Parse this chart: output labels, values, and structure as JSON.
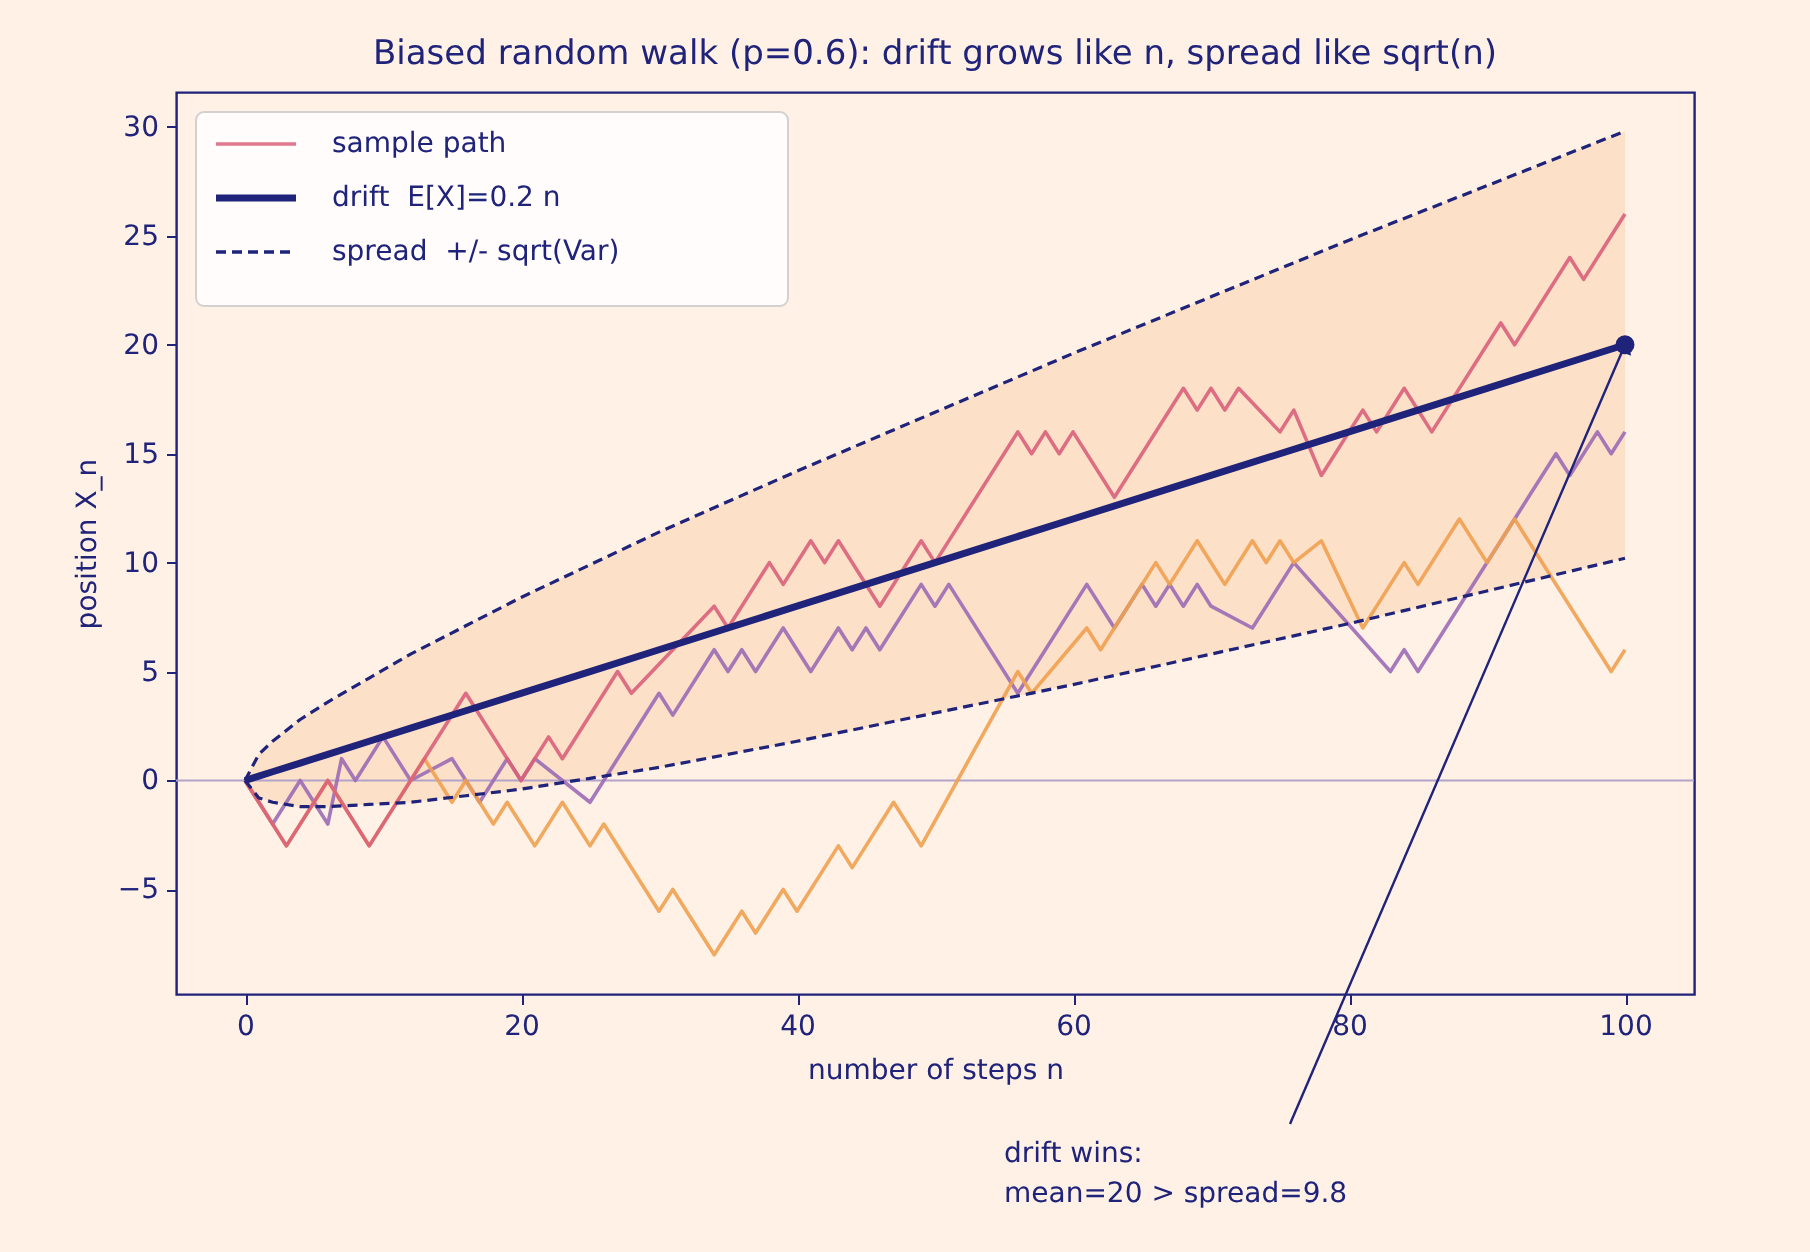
{
  "chart_data": {
    "type": "line",
    "title": "Biased random walk (p=0.6): drift grows like n, spread like sqrt(n)",
    "xlabel": "number of steps  n",
    "ylabel": "position  X_n",
    "xlim": [
      -5,
      105
    ],
    "xticks": [
      0,
      20,
      40,
      60,
      80,
      100
    ],
    "ylim": [
      -9.8,
      31.6
    ],
    "yticks": [
      -5,
      0,
      5,
      10,
      15,
      20,
      25,
      30
    ],
    "grid": false,
    "legend": "top left",
    "ref_lines": [
      {
        "axis": "y",
        "value": 0,
        "color": "#b3a3c9"
      }
    ],
    "annotations": [
      {
        "text": "drift wins:\nmean=20 > spread=9.8",
        "x": 100,
        "y": 20
      }
    ],
    "series": [
      {
        "name": "sample path",
        "color": "#d9607a",
        "x": [
          0,
          3,
          6,
          9,
          13,
          16,
          20,
          22,
          23,
          27,
          28,
          34,
          35,
          38,
          39,
          41,
          42,
          43,
          46,
          49,
          50,
          56,
          57,
          58,
          59,
          60,
          63,
          68,
          69,
          70,
          71,
          72,
          75,
          76,
          78,
          81,
          82,
          84,
          86,
          91,
          92,
          96,
          97,
          100
        ],
        "values": [
          0,
          -3,
          0,
          -3,
          1,
          4,
          0,
          2,
          1,
          5,
          4,
          8,
          7,
          10,
          9,
          11,
          10,
          11,
          8,
          11,
          10,
          16,
          15,
          16,
          15,
          16,
          13,
          18,
          17,
          18,
          17,
          18,
          16,
          17,
          14,
          17,
          16,
          18,
          16,
          21,
          20,
          24,
          23,
          26
        ]
      },
      {
        "name": "drift  E[X]=0.2 n",
        "color": "#1f237a",
        "x": [
          0,
          1,
          2,
          4,
          6,
          9,
          12,
          16,
          20,
          25,
          30,
          40,
          50,
          60,
          70,
          80,
          90,
          100
        ],
        "values": [
          0,
          0.2,
          0.4,
          0.8,
          1.2,
          1.8,
          2.4,
          3.2,
          4,
          5,
          6,
          8,
          10,
          12,
          14,
          16,
          18,
          20
        ],
        "lower": [
          0,
          -0.8,
          -1,
          -1.2,
          -1.2,
          -1.1,
          -1,
          -0.7,
          -0.4,
          0.1,
          0.6,
          1.8,
          3.1,
          4.4,
          5.8,
          7.2,
          8.7,
          10.2
        ],
        "upper": [
          0,
          1.2,
          1.8,
          2.8,
          3.6,
          4.7,
          5.8,
          7.1,
          8.4,
          9.9,
          11.4,
          14.2,
          16.9,
          19.6,
          22.2,
          24.8,
          27.3,
          29.8
        ]
      },
      {
        "name": "spread  +/- sqrt(Var)",
        "line_style": "dashed",
        "color": "#1f237a",
        "x": [
          0,
          1,
          2,
          4,
          6,
          9,
          12,
          16,
          20,
          25,
          30,
          40,
          50,
          60,
          70,
          80,
          90,
          100
        ],
        "values": [
          0,
          1.2,
          1.8,
          2.8,
          3.6,
          4.7,
          5.8,
          7.1,
          8.4,
          9.9,
          11.4,
          14.2,
          16.9,
          19.6,
          22.2,
          24.8,
          27.3,
          29.8
        ]
      },
      {
        "color": "#9b6bb5",
        "x": [
          0,
          2,
          4,
          6,
          7,
          8,
          10,
          12,
          15,
          17,
          19,
          20,
          21,
          25,
          30,
          31,
          34,
          35,
          36,
          37,
          39,
          41,
          43,
          44,
          45,
          46,
          49,
          50,
          51,
          56,
          61,
          63,
          65,
          66,
          67,
          68,
          69,
          70,
          73,
          76,
          83,
          84,
          85,
          95,
          96,
          98,
          99,
          100
        ],
        "values": [
          0,
          -2,
          0,
          -2,
          1,
          0,
          2,
          0,
          1,
          -1,
          1,
          0,
          1,
          -1,
          4,
          3,
          6,
          5,
          6,
          5,
          7,
          5,
          7,
          6,
          7,
          6,
          9,
          8,
          9,
          4,
          9,
          7,
          9,
          8,
          9,
          8,
          9,
          8,
          7,
          10,
          5,
          6,
          5,
          15,
          14,
          16,
          15,
          16
        ]
      },
      {
        "color": "#f0a050",
        "x": [
          0,
          3,
          6,
          9,
          13,
          15,
          16,
          18,
          19,
          21,
          23,
          25,
          26,
          30,
          31,
          34,
          36,
          37,
          39,
          40,
          43,
          44,
          47,
          49,
          56,
          57,
          61,
          62,
          66,
          67,
          69,
          71,
          73,
          74,
          75,
          76,
          78,
          81,
          84,
          85,
          88,
          90,
          92,
          99,
          100
        ],
        "values": [
          0,
          -3,
          0,
          -3,
          1,
          -1,
          0,
          -2,
          -1,
          -3,
          -1,
          -3,
          -2,
          -6,
          -5,
          -8,
          -6,
          -7,
          -5,
          -6,
          -3,
          -4,
          -1,
          -3,
          5,
          4,
          7,
          6,
          10,
          9,
          11,
          9,
          11,
          10,
          11,
          10,
          11,
          7,
          10,
          9,
          12,
          10,
          12,
          5,
          6
        ]
      },
      {
        "line_style": "dashed",
        "color": "#1f237a",
        "x": [
          0,
          1,
          2,
          4,
          6,
          9,
          12,
          16,
          20,
          25,
          30,
          40,
          50,
          60,
          70,
          80,
          90,
          100
        ],
        "values": [
          0,
          -0.8,
          -1,
          -1.2,
          -1.2,
          -1.1,
          -1,
          -0.7,
          -0.4,
          0.1,
          0.6,
          1.8,
          3.1,
          4.4,
          5.8,
          7.2,
          8.7,
          10.2
        ]
      },
      {
        "type": "scatter",
        "marker": "circle",
        "color": "#1f237a",
        "x": [
          100
        ],
        "values": [
          20
        ]
      }
    ]
  }
}
